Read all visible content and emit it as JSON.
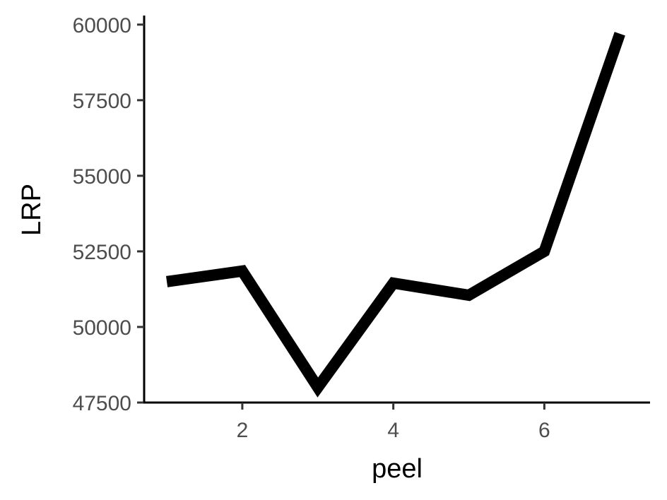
{
  "chart_data": {
    "type": "line",
    "title": "",
    "xlabel": "peel",
    "ylabel": "LRP",
    "x": [
      1,
      2,
      3,
      4,
      5,
      6,
      7
    ],
    "series": [
      {
        "values": [
          51500,
          51850,
          48000,
          51450,
          51050,
          52500,
          59700
        ],
        "color": "#000000"
      }
    ],
    "xlim": [
      0.7,
      7.4
    ],
    "ylim": [
      47500,
      60300
    ],
    "xticks": [
      2,
      4,
      6
    ],
    "xtick_labels": [
      "2",
      "4",
      "6"
    ],
    "yticks": [
      47500,
      50000,
      52500,
      55000,
      57500,
      60000
    ],
    "ytick_labels": [
      "47500",
      "50000",
      "52500",
      "55000",
      "57500",
      "60000"
    ],
    "grid": false,
    "legend": "none"
  }
}
